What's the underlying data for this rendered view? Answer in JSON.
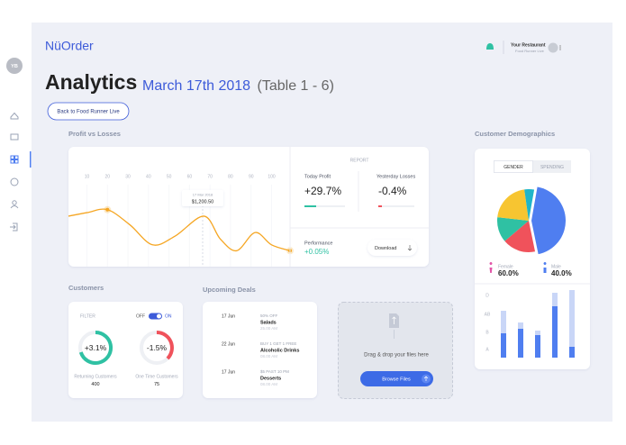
{
  "header": {
    "logo": "NüOrder",
    "restaurant": "Your Restaurant",
    "subtitle": "Food Runner Live"
  },
  "sidebar": {
    "avatar": "YB"
  },
  "page": {
    "title": "Analytics",
    "date": "March 17th 2018",
    "table": "(Table 1 - 6)",
    "back_button": "Back to Food Runner Live"
  },
  "report": {
    "label": "REPORT",
    "today_label": "Today Profit",
    "today_value": "+29.7%",
    "yesterday_label": "Yesterday Losses",
    "yesterday_value": "-0.4%",
    "performance_label": "Performance",
    "performance_value": "+0.05%",
    "download": "Download"
  },
  "demographics": {
    "tabs": [
      "GENDER",
      "SPENDING"
    ],
    "female_label": "Female",
    "female_value": "60.0%",
    "male_label": "Male",
    "male_value": "40.0%"
  },
  "customers": {
    "title": "Customers",
    "filter": "FILTER",
    "off": "OFF",
    "on": "ON",
    "stats": [
      {
        "change": "+3.1%",
        "label": "Returning Customers",
        "count": "400"
      },
      {
        "change": "-1.5%",
        "label": "One Time Customers",
        "count": "75"
      }
    ]
  },
  "deals": {
    "title": "Upcoming Deals",
    "items": [
      {
        "date": "17 Jun",
        "offer": "50% OFF",
        "item": "Salads",
        "time": "25.00 AM"
      },
      {
        "date": "22 Jun",
        "offer": "BUY 1 GET 1 FREE",
        "item": "Alcoholic Drinks",
        "time": "08.00 AM"
      },
      {
        "date": "17 Jun",
        "offer": "$5 PAST 10 PM",
        "item": "Desserts",
        "time": "08.00 AM"
      }
    ]
  },
  "upload": {
    "text": "Drag & drop your files here",
    "button": "Browse Files"
  },
  "chart_data": [
    {
      "type": "line",
      "title": "Profit vs Losses",
      "color": "#f5a623",
      "x": [
        1,
        10,
        20,
        31,
        42,
        53,
        67,
        75,
        83,
        92,
        100,
        109
      ],
      "values": [
        77,
        83,
        88,
        62,
        28,
        43,
        77,
        38,
        18,
        49,
        28,
        18
      ],
      "xlim": [
        1,
        109
      ],
      "xticks": [
        10,
        20,
        30,
        40,
        50,
        60,
        70,
        80,
        90,
        100
      ],
      "ylim": [
        0,
        100
      ],
      "annotations": [
        "17 Mar 2018",
        "$1,200.50"
      ]
    },
    {
      "type": "pie",
      "title": "Customer Demographics",
      "categories": [
        null,
        null,
        null,
        null,
        null
      ],
      "values": [
        44,
        17,
        13,
        21,
        5
      ],
      "colors": [
        "#4f7ef0",
        "#f0525b",
        "#2fc1a3",
        "#f7c531",
        "#1fb5c9"
      ]
    },
    {
      "type": "bar",
      "categories": [
        null,
        null,
        null,
        null,
        null
      ],
      "ylim": [
        0,
        80
      ],
      "yticks": [
        {
          "value": 69,
          "label": "D"
        },
        {
          "value": 48,
          "label": "AB"
        },
        {
          "value": 28,
          "label": "B"
        },
        {
          "value": 9,
          "label": "A"
        }
      ],
      "series": [
        {
          "color": "#c9d6f7",
          "values": [
            52,
            39,
            30,
            72,
            75
          ]
        },
        {
          "color": "#4f7ef0",
          "values": [
            27,
            32,
            25,
            57,
            12
          ]
        }
      ]
    }
  ]
}
